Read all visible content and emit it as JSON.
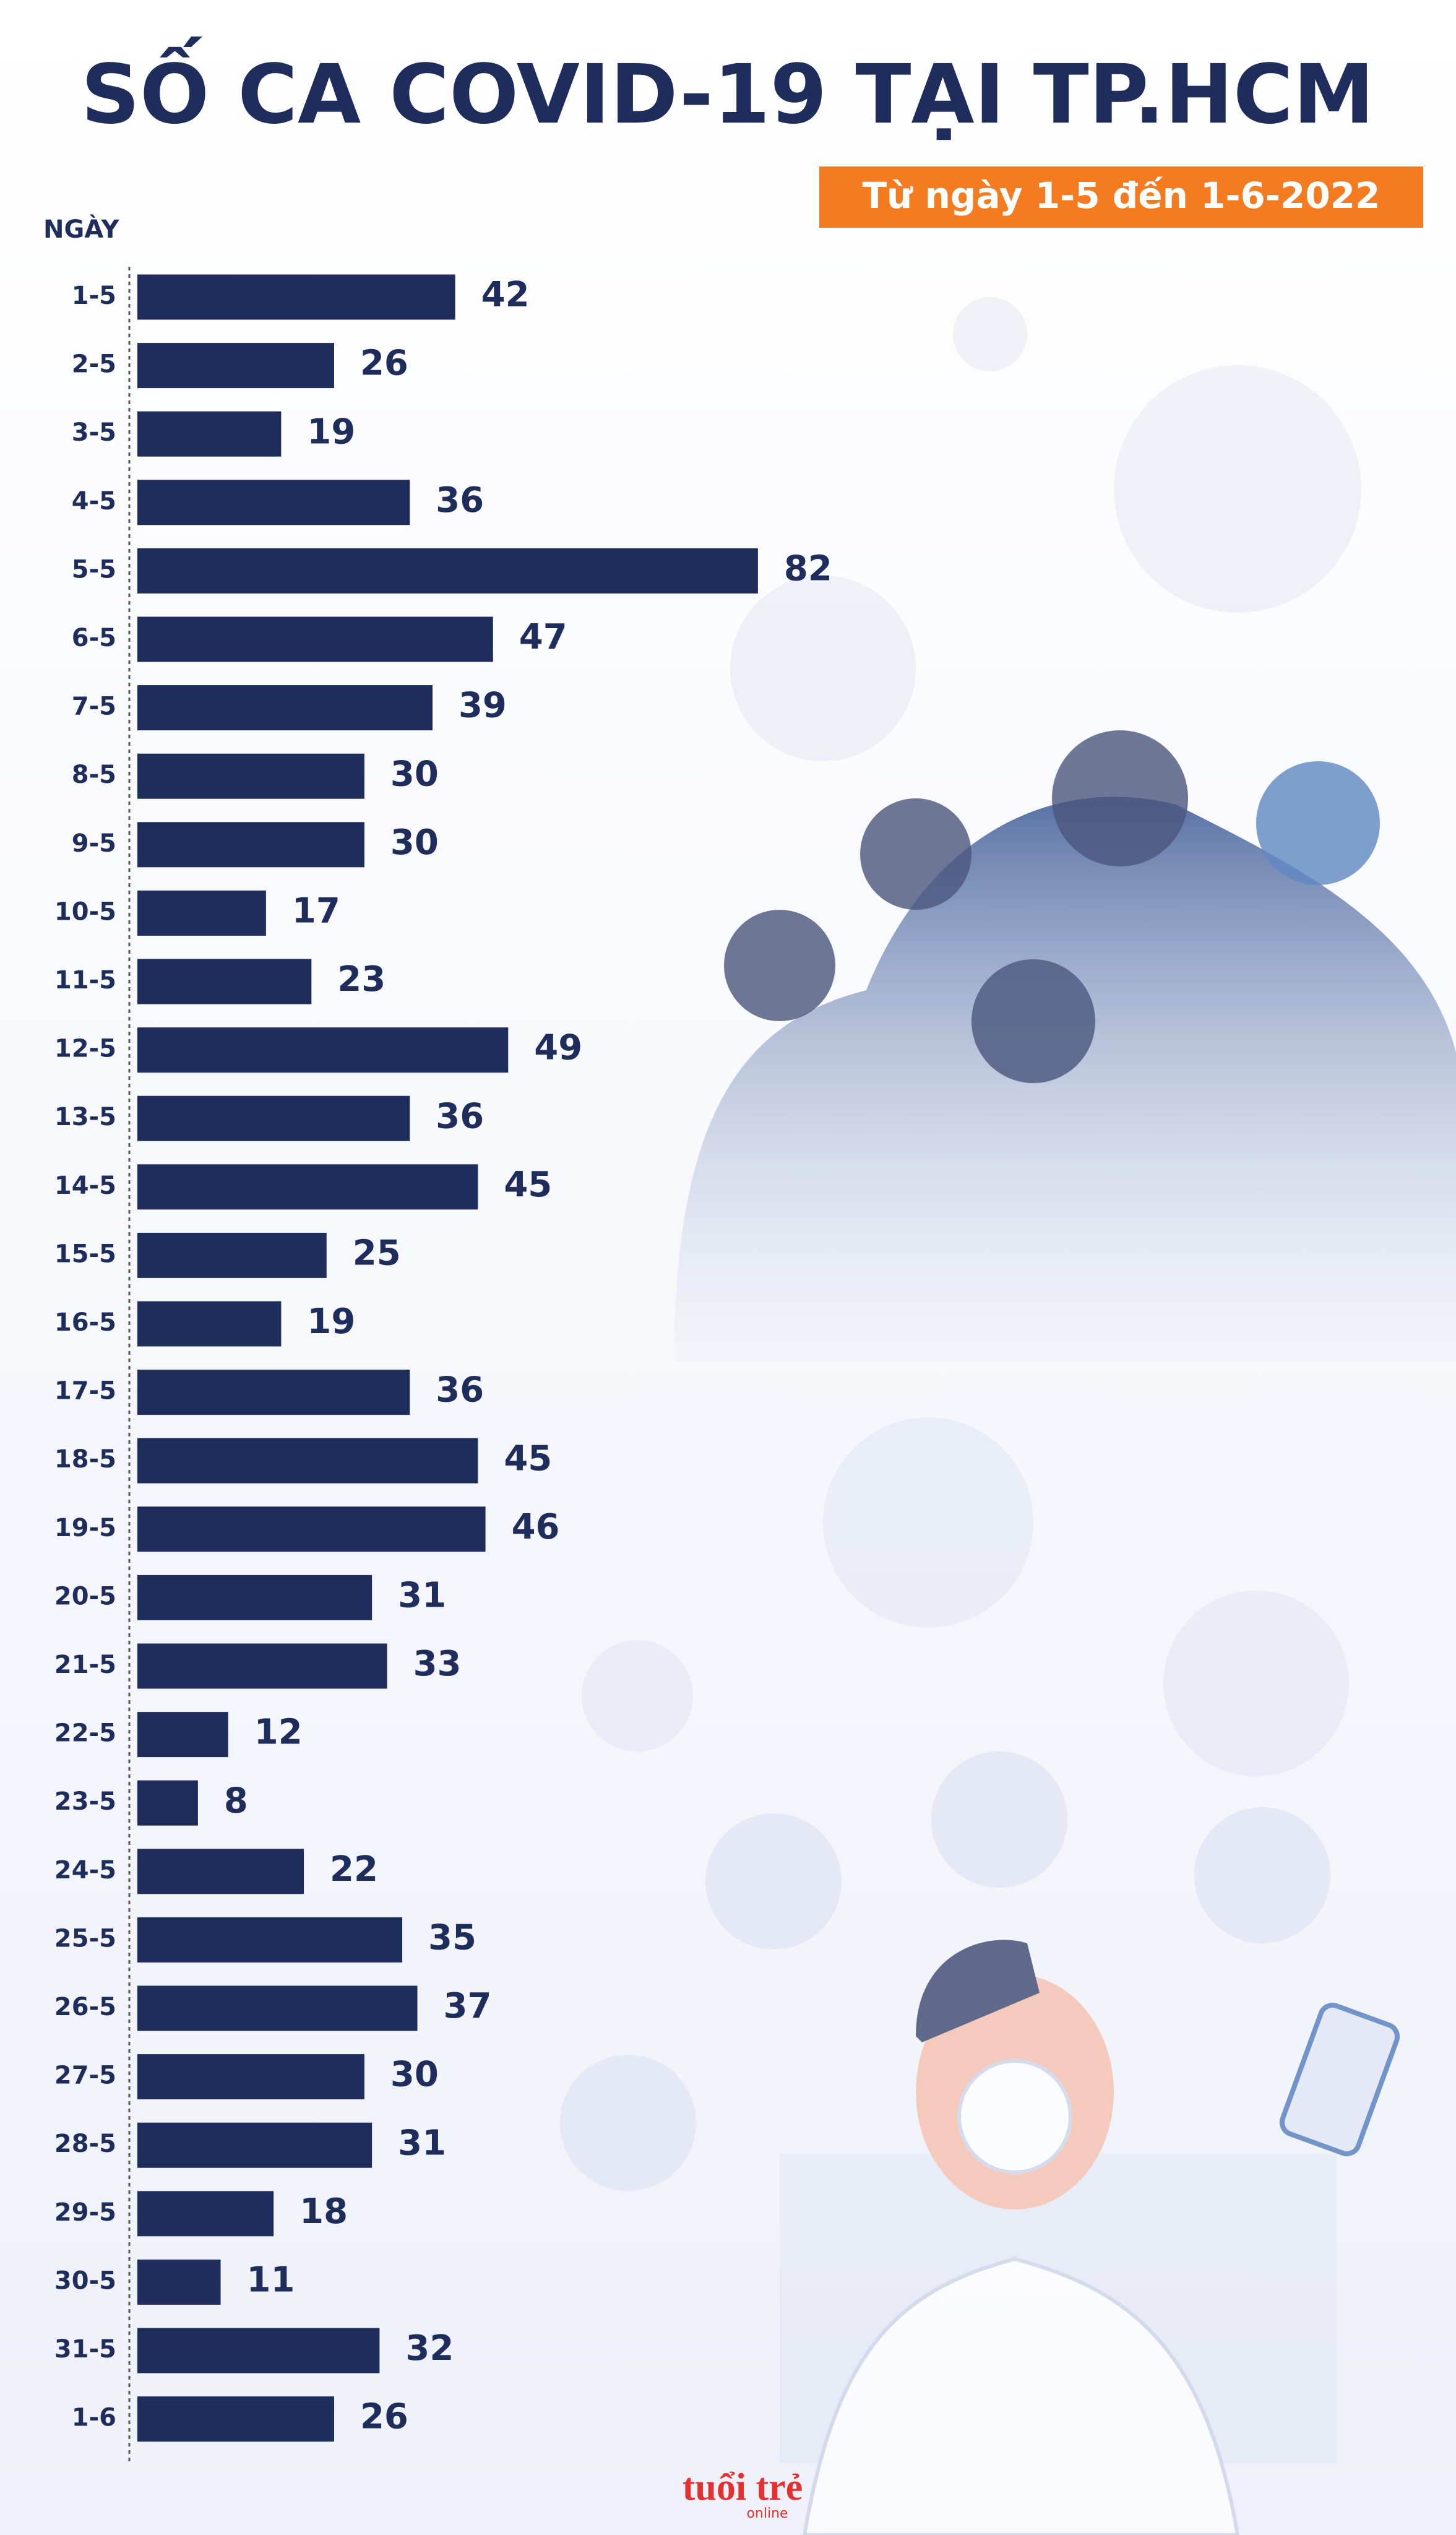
{
  "chart_data": {
    "type": "bar",
    "orientation": "horizontal",
    "title": "SỐ CA COVID-19 TẠI TP.HCM",
    "subtitle": "Từ ngày 1-5 đến 1-6-2022",
    "y_label": "NGÀY",
    "categories": [
      "1-5",
      "2-5",
      "3-5",
      "4-5",
      "5-5",
      "6-5",
      "7-5",
      "8-5",
      "9-5",
      "10-5",
      "11-5",
      "12-5",
      "13-5",
      "14-5",
      "15-5",
      "16-5",
      "17-5",
      "18-5",
      "19-5",
      "20-5",
      "21-5",
      "22-5",
      "23-5",
      "24-5",
      "25-5",
      "26-5",
      "27-5",
      "28-5",
      "29-5",
      "30-5",
      "31-5",
      "1-6"
    ],
    "values": [
      42,
      26,
      19,
      36,
      82,
      47,
      39,
      30,
      30,
      17,
      23,
      49,
      36,
      45,
      25,
      19,
      36,
      45,
      46,
      31,
      33,
      12,
      8,
      22,
      35,
      37,
      30,
      31,
      18,
      11,
      32,
      26
    ],
    "color": "#1f2d5c"
  },
  "logo": {
    "main": "tuổi trẻ",
    "sub": "online"
  }
}
